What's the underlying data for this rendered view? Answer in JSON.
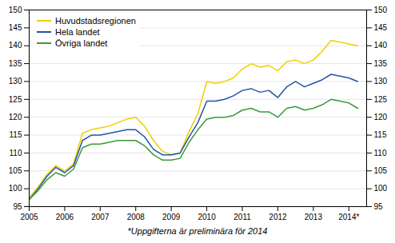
{
  "chart_data": {
    "type": "line",
    "caption": "*Uppgifterna är preliminära för 2014",
    "x": [
      2005,
      2005.25,
      2005.5,
      2005.75,
      2006,
      2006.25,
      2006.5,
      2006.75,
      2007,
      2007.25,
      2007.5,
      2007.75,
      2008,
      2008.25,
      2008.5,
      2008.75,
      2009,
      2009.25,
      2009.5,
      2009.75,
      2010,
      2010.25,
      2010.5,
      2010.75,
      2011,
      2011.25,
      2011.5,
      2011.75,
      2012,
      2012.25,
      2012.5,
      2012.75,
      2013,
      2013.25,
      2013.5,
      2013.75,
      2014,
      2014.25
    ],
    "series": [
      {
        "name": "Huvudstadsregionen",
        "color": "#f0d000",
        "values": [
          97.5,
          100.5,
          104.0,
          106.5,
          105.0,
          107.0,
          115.5,
          116.5,
          117.0,
          117.5,
          118.5,
          119.5,
          120.0,
          117.5,
          113.5,
          110.5,
          109.5,
          110.0,
          116.0,
          121.0,
          130.0,
          129.5,
          130.0,
          131.0,
          133.5,
          135.0,
          134.0,
          134.5,
          133.0,
          135.5,
          136.0,
          135.0,
          136.0,
          138.5,
          141.5,
          141.0,
          140.5,
          140.0
        ]
      },
      {
        "name": "Hela landet",
        "color": "#2255aa",
        "values": [
          97.0,
          100.0,
          103.5,
          106.0,
          104.5,
          106.5,
          113.5,
          115.0,
          115.0,
          115.5,
          116.0,
          116.5,
          116.5,
          114.5,
          111.0,
          109.5,
          109.5,
          110.0,
          114.5,
          118.5,
          124.5,
          124.5,
          125.0,
          126.0,
          127.5,
          128.0,
          127.0,
          127.5,
          125.5,
          128.5,
          130.0,
          128.5,
          129.5,
          130.5,
          132.0,
          131.5,
          131.0,
          130.0
        ]
      },
      {
        "name": "Övriga landet",
        "color": "#3a9a3a",
        "values": [
          97.0,
          99.5,
          102.5,
          104.5,
          103.5,
          105.5,
          111.5,
          112.5,
          112.5,
          113.0,
          113.5,
          113.5,
          113.5,
          112.0,
          109.5,
          108.0,
          108.0,
          108.5,
          113.0,
          116.5,
          119.5,
          120.0,
          120.0,
          120.5,
          122.0,
          122.5,
          121.5,
          121.5,
          120.0,
          122.5,
          123.0,
          122.0,
          122.5,
          123.5,
          125.0,
          124.5,
          124.0,
          122.5
        ]
      }
    ],
    "xlim": [
      2005,
      2014.5
    ],
    "xticks": [
      2005,
      2006,
      2007,
      2008,
      2009,
      2010,
      2011,
      2012,
      2013,
      {
        "value": 2014,
        "label": "2014*"
      }
    ],
    "ylim": [
      95,
      150
    ],
    "yticks": [
      95,
      100,
      105,
      110,
      115,
      120,
      125,
      130,
      135,
      140,
      145,
      150
    ],
    "grid": true,
    "legend": "upper left"
  }
}
